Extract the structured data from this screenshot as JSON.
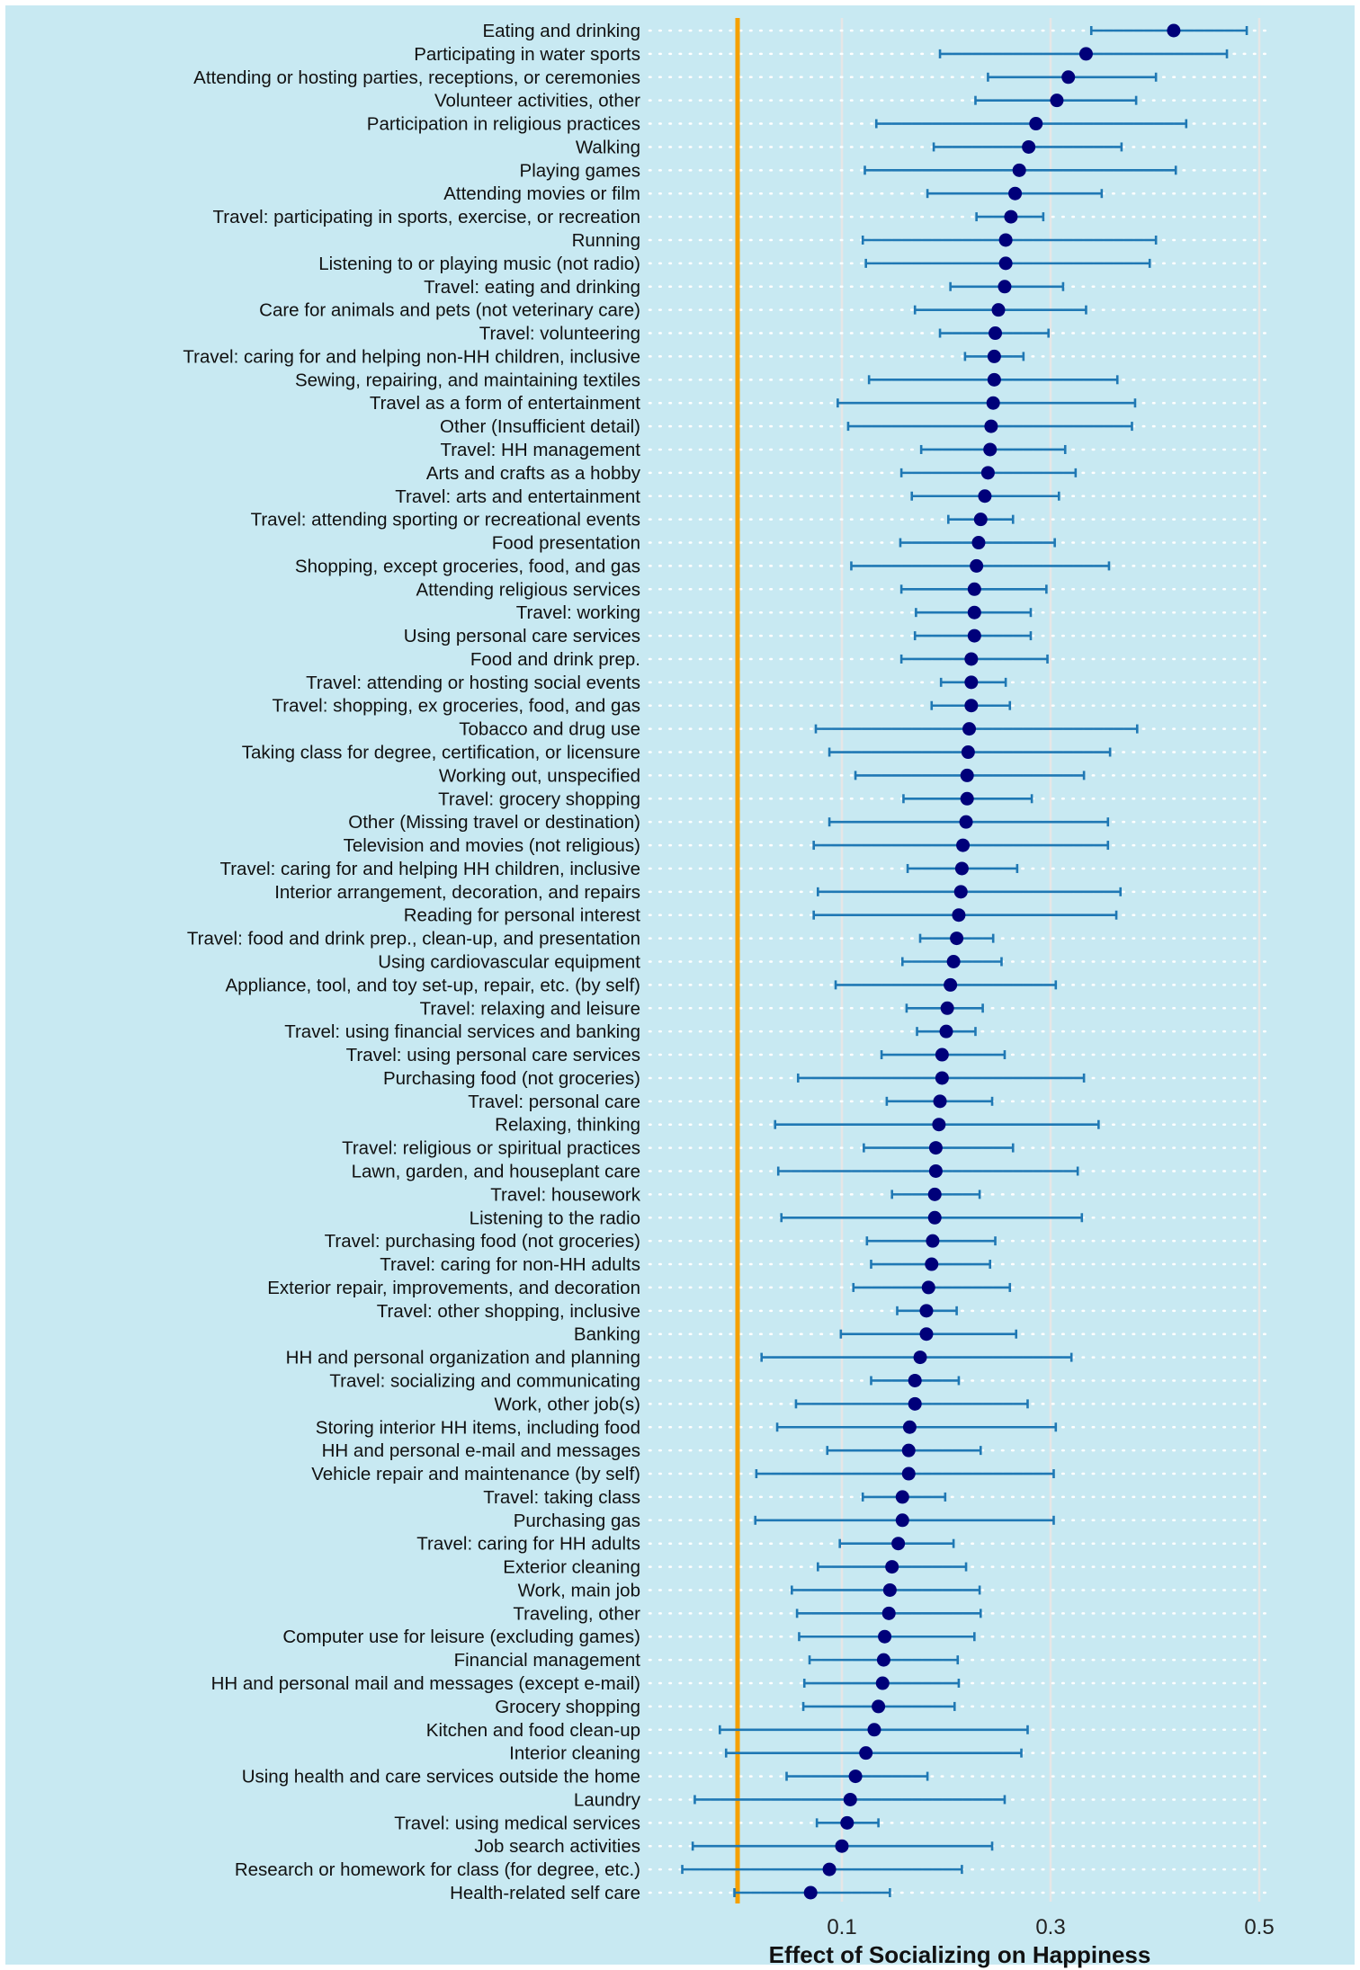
{
  "chart_data": {
    "type": "forest",
    "title": "",
    "xlabel": "Effect of Socializing on Happiness",
    "ylabel": "",
    "xlim": [
      0.0,
      0.505
    ],
    "xticks": [
      0.1,
      0.3,
      0.5
    ],
    "xtick_labels": [
      "0.1",
      "0.3",
      "0.5"
    ],
    "reference_line": 0.0,
    "grid": true,
    "colors": {
      "background": "#c8e9f2",
      "reference_line": "#f5a000",
      "point": "#00007a",
      "interval": "#1f78b4",
      "gridline": "#e6e6e6",
      "row_dots": "#ffffff"
    },
    "rows": [
      {
        "label": "Eating and drinking",
        "estimate": 0.418,
        "low": 0.339,
        "high": 0.488
      },
      {
        "label": "Participating in water sports",
        "estimate": 0.334,
        "low": 0.194,
        "high": 0.469
      },
      {
        "label": "Attending or hosting parties, receptions, or ceremonies",
        "estimate": 0.317,
        "low": 0.24,
        "high": 0.401
      },
      {
        "label": "Volunteer activities, other",
        "estimate": 0.306,
        "low": 0.228,
        "high": 0.382
      },
      {
        "label": "Participation in religious practices",
        "estimate": 0.286,
        "low": 0.133,
        "high": 0.43
      },
      {
        "label": "Walking",
        "estimate": 0.279,
        "low": 0.188,
        "high": 0.368
      },
      {
        "label": "Playing games",
        "estimate": 0.27,
        "low": 0.122,
        "high": 0.42
      },
      {
        "label": "Attending movies or film",
        "estimate": 0.266,
        "low": 0.182,
        "high": 0.349
      },
      {
        "label": "Travel: participating in sports, exercise, or recreation",
        "estimate": 0.262,
        "low": 0.229,
        "high": 0.293
      },
      {
        "label": "Running",
        "estimate": 0.257,
        "low": 0.12,
        "high": 0.401
      },
      {
        "label": "Listening to or playing music (not radio)",
        "estimate": 0.257,
        "low": 0.123,
        "high": 0.395
      },
      {
        "label": "Travel: eating and drinking",
        "estimate": 0.256,
        "low": 0.204,
        "high": 0.312
      },
      {
        "label": "Care for animals and pets (not veterinary care)",
        "estimate": 0.25,
        "low": 0.17,
        "high": 0.334
      },
      {
        "label": "Travel: volunteering",
        "estimate": 0.247,
        "low": 0.194,
        "high": 0.298
      },
      {
        "label": "Travel: caring for and helping non-HH children, inclusive",
        "estimate": 0.246,
        "low": 0.218,
        "high": 0.274
      },
      {
        "label": "Sewing, repairing, and maintaining textiles",
        "estimate": 0.246,
        "low": 0.126,
        "high": 0.364
      },
      {
        "label": "Travel as a form of entertainment",
        "estimate": 0.245,
        "low": 0.096,
        "high": 0.381
      },
      {
        "label": "Other (Insufficient detail)",
        "estimate": 0.243,
        "low": 0.106,
        "high": 0.378
      },
      {
        "label": "Travel: HH management",
        "estimate": 0.242,
        "low": 0.176,
        "high": 0.314
      },
      {
        "label": "Arts and crafts as a hobby",
        "estimate": 0.24,
        "low": 0.157,
        "high": 0.324
      },
      {
        "label": "Travel: arts and entertainment",
        "estimate": 0.237,
        "low": 0.167,
        "high": 0.308
      },
      {
        "label": "Travel: attending sporting or recreational events",
        "estimate": 0.233,
        "low": 0.202,
        "high": 0.264
      },
      {
        "label": "Food presentation",
        "estimate": 0.231,
        "low": 0.156,
        "high": 0.304
      },
      {
        "label": "Shopping, except groceries, food, and gas",
        "estimate": 0.229,
        "low": 0.109,
        "high": 0.356
      },
      {
        "label": "Attending religious services",
        "estimate": 0.227,
        "low": 0.157,
        "high": 0.296
      },
      {
        "label": "Travel: working",
        "estimate": 0.227,
        "low": 0.171,
        "high": 0.281
      },
      {
        "label": "Using personal care services",
        "estimate": 0.227,
        "low": 0.17,
        "high": 0.281
      },
      {
        "label": "Food and drink prep.",
        "estimate": 0.224,
        "low": 0.157,
        "high": 0.297
      },
      {
        "label": "Travel: attending or hosting social events",
        "estimate": 0.224,
        "low": 0.195,
        "high": 0.257
      },
      {
        "label": "Travel: shopping, ex groceries, food, and gas",
        "estimate": 0.224,
        "low": 0.186,
        "high": 0.261
      },
      {
        "label": "Tobacco and drug use",
        "estimate": 0.222,
        "low": 0.075,
        "high": 0.383
      },
      {
        "label": "Taking class for degree, certification, or licensure",
        "estimate": 0.221,
        "low": 0.088,
        "high": 0.357
      },
      {
        "label": "Working out, unspecified",
        "estimate": 0.22,
        "low": 0.113,
        "high": 0.332
      },
      {
        "label": "Travel: grocery shopping",
        "estimate": 0.22,
        "low": 0.159,
        "high": 0.282
      },
      {
        "label": "Other (Missing travel or destination)",
        "estimate": 0.219,
        "low": 0.088,
        "high": 0.355
      },
      {
        "label": "Television and movies (not religious)",
        "estimate": 0.216,
        "low": 0.073,
        "high": 0.355
      },
      {
        "label": "Travel: caring for and helping HH children, inclusive",
        "estimate": 0.215,
        "low": 0.163,
        "high": 0.268
      },
      {
        "label": "Interior arrangement, decoration, and repairs",
        "estimate": 0.214,
        "low": 0.077,
        "high": 0.367
      },
      {
        "label": "Reading for personal interest",
        "estimate": 0.212,
        "low": 0.073,
        "high": 0.363
      },
      {
        "label": "Travel: food and drink prep., clean-up, and presentation",
        "estimate": 0.21,
        "low": 0.175,
        "high": 0.245
      },
      {
        "label": "Using cardiovascular equipment",
        "estimate": 0.207,
        "low": 0.158,
        "high": 0.253
      },
      {
        "label": "Appliance, tool, and toy set-up, repair, etc. (by self)",
        "estimate": 0.204,
        "low": 0.094,
        "high": 0.305
      },
      {
        "label": "Travel: relaxing and leisure",
        "estimate": 0.201,
        "low": 0.162,
        "high": 0.235
      },
      {
        "label": "Travel: using financial services and banking",
        "estimate": 0.2,
        "low": 0.172,
        "high": 0.228
      },
      {
        "label": "Travel: using personal care services",
        "estimate": 0.196,
        "low": 0.138,
        "high": 0.256
      },
      {
        "label": "Purchasing food (not groceries)",
        "estimate": 0.196,
        "low": 0.058,
        "high": 0.332
      },
      {
        "label": "Travel: personal care",
        "estimate": 0.194,
        "low": 0.143,
        "high": 0.244
      },
      {
        "label": "Relaxing, thinking",
        "estimate": 0.193,
        "low": 0.036,
        "high": 0.346
      },
      {
        "label": "Travel: religious or spiritual practices",
        "estimate": 0.19,
        "low": 0.121,
        "high": 0.264
      },
      {
        "label": "Lawn, garden, and houseplant care",
        "estimate": 0.19,
        "low": 0.039,
        "high": 0.326
      },
      {
        "label": "Travel: housework",
        "estimate": 0.189,
        "low": 0.148,
        "high": 0.232
      },
      {
        "label": "Listening to the radio",
        "estimate": 0.189,
        "low": 0.042,
        "high": 0.33
      },
      {
        "label": "Travel: purchasing food (not groceries)",
        "estimate": 0.187,
        "low": 0.124,
        "high": 0.247
      },
      {
        "label": "Travel: caring for non-HH adults",
        "estimate": 0.186,
        "low": 0.128,
        "high": 0.242
      },
      {
        "label": "Exterior repair, improvements, and decoration",
        "estimate": 0.183,
        "low": 0.111,
        "high": 0.261
      },
      {
        "label": "Travel: other shopping, inclusive",
        "estimate": 0.181,
        "low": 0.153,
        "high": 0.21
      },
      {
        "label": "Banking",
        "estimate": 0.181,
        "low": 0.099,
        "high": 0.267
      },
      {
        "label": "HH and personal organization and planning",
        "estimate": 0.175,
        "low": 0.023,
        "high": 0.32
      },
      {
        "label": "Travel: socializing and communicating",
        "estimate": 0.17,
        "low": 0.128,
        "high": 0.212
      },
      {
        "label": "Work, other job(s)",
        "estimate": 0.17,
        "low": 0.056,
        "high": 0.278
      },
      {
        "label": "Storing interior HH items, including food",
        "estimate": 0.165,
        "low": 0.038,
        "high": 0.305
      },
      {
        "label": "HH and personal e-mail and messages",
        "estimate": 0.164,
        "low": 0.086,
        "high": 0.233
      },
      {
        "label": "Vehicle repair and maintenance (by self)",
        "estimate": 0.164,
        "low": 0.018,
        "high": 0.303
      },
      {
        "label": "Travel: taking class",
        "estimate": 0.158,
        "low": 0.12,
        "high": 0.199
      },
      {
        "label": "Purchasing gas",
        "estimate": 0.158,
        "low": 0.017,
        "high": 0.303
      },
      {
        "label": "Travel: caring for HH adults",
        "estimate": 0.154,
        "low": 0.098,
        "high": 0.207
      },
      {
        "label": "Exterior cleaning",
        "estimate": 0.148,
        "low": 0.077,
        "high": 0.219
      },
      {
        "label": "Work, main job",
        "estimate": 0.146,
        "low": 0.052,
        "high": 0.232
      },
      {
        "label": "Traveling, other",
        "estimate": 0.145,
        "low": 0.057,
        "high": 0.233
      },
      {
        "label": "Computer use for leisure (excluding games)",
        "estimate": 0.141,
        "low": 0.059,
        "high": 0.227
      },
      {
        "label": "Financial management",
        "estimate": 0.14,
        "low": 0.069,
        "high": 0.211
      },
      {
        "label": "HH and personal mail and messages (except e-mail)",
        "estimate": 0.139,
        "low": 0.064,
        "high": 0.212
      },
      {
        "label": "Grocery shopping",
        "estimate": 0.135,
        "low": 0.063,
        "high": 0.208
      },
      {
        "label": "Kitchen and food clean-up",
        "estimate": 0.131,
        "low": -0.017,
        "high": 0.278
      },
      {
        "label": "Interior cleaning",
        "estimate": 0.123,
        "low": -0.011,
        "high": 0.272
      },
      {
        "label": "Using health and care services outside the home",
        "estimate": 0.113,
        "low": 0.047,
        "high": 0.182
      },
      {
        "label": "Laundry",
        "estimate": 0.108,
        "low": -0.041,
        "high": 0.256
      },
      {
        "label": "Travel: using medical services",
        "estimate": 0.105,
        "low": 0.076,
        "high": 0.135
      },
      {
        "label": "Job search activities",
        "estimate": 0.1,
        "low": -0.043,
        "high": 0.244
      },
      {
        "label": "Research or homework for class (for degree, etc.)",
        "estimate": 0.088,
        "low": -0.053,
        "high": 0.215
      },
      {
        "label": "Health-related self care",
        "estimate": 0.07,
        "low": -0.003,
        "high": 0.146
      }
    ]
  }
}
